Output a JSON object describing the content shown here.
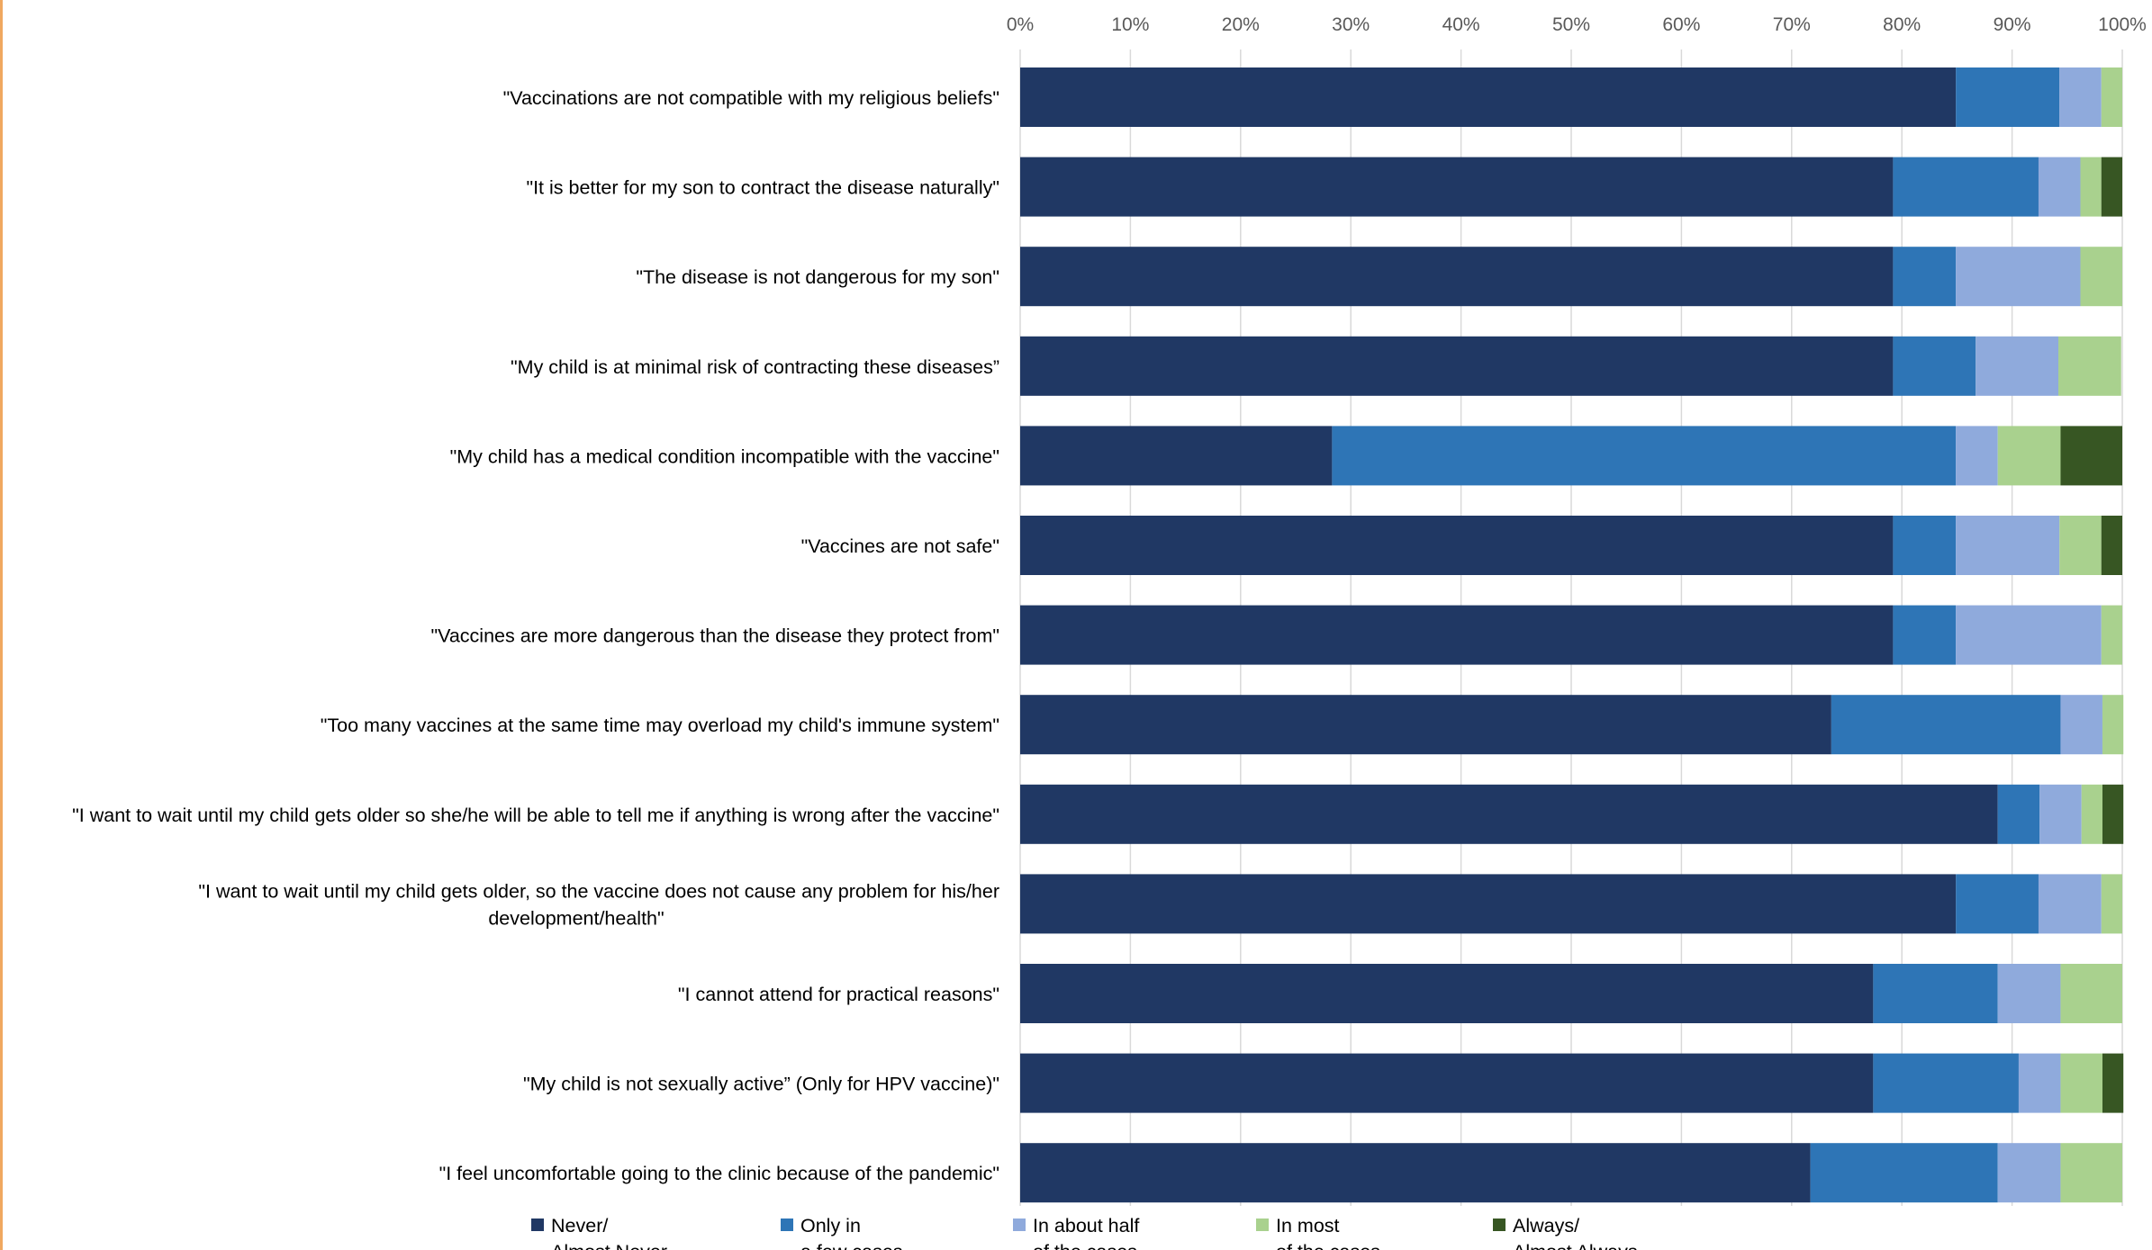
{
  "chart_data": {
    "type": "bar",
    "orientation": "horizontal",
    "stacked": "percent",
    "xlim": [
      0,
      100
    ],
    "x_ticks": [
      "0%",
      "10%",
      "20%",
      "30%",
      "40%",
      "50%",
      "60%",
      "70%",
      "80%",
      "90%",
      "100%"
    ],
    "grid": true,
    "legend_position": "bottom",
    "categories": [
      "\"Vaccinations are not compatible with my religious beliefs\"",
      "\"It is better for my son to contract the disease naturally\"",
      "\"The disease is not dangerous for my son\"",
      "\"My child is at minimal risk of contracting these diseases”",
      "\"My child has a medical condition incompatible with the vaccine\"",
      "\"Vaccines are not safe\"",
      "\"Vaccines are more dangerous than the disease they protect from\"",
      "\"Too many vaccines at the same time may overload my child's immune system\"",
      "\"I want to wait until my child gets older so she/he will be able to tell me if anything is wrong after the vaccine\"",
      "\"I want to wait until my child gets older, so the vaccine does not cause any problem for his/her development/health\"",
      "\"I cannot attend for practical reasons\"",
      "\"My child is not sexually active” (Only for HPV vaccine)\"",
      "\"I feel uncomfortable going to the clinic because of the pandemic\""
    ],
    "category_lines": [
      [
        "\"Vaccinations are not compatible with my religious beliefs\""
      ],
      [
        "\"It is better for my son to contract the disease naturally\""
      ],
      [
        "\"The disease is not dangerous for my son\""
      ],
      [
        "\"My child is at minimal risk of contracting these diseases”"
      ],
      [
        "\"My child has a medical condition incompatible with the vaccine\""
      ],
      [
        "\"Vaccines are not safe\""
      ],
      [
        "\"Vaccines are more dangerous than the disease they protect from\""
      ],
      [
        "\"Too many vaccines at the same time may overload my child's immune system\""
      ],
      [
        "\"I want to wait until my child gets older so she/he will be able to tell me if anything is wrong after the vaccine\""
      ],
      [
        "\"I want to wait until my child gets older, so the vaccine does not cause any problem for his/her",
        "development/health\""
      ],
      [
        "\"I cannot attend for practical reasons\""
      ],
      [
        "\"My child is not sexually active” (Only for HPV vaccine)\""
      ],
      [
        "\"I feel uncomfortable going to the clinic because of the pandemic\""
      ]
    ],
    "series": [
      {
        "name": "Never/ Almost Never",
        "legend_lines": [
          "Never/",
          "Almost Never"
        ],
        "color": "#203864",
        "values": [
          84.9,
          79.2,
          79.2,
          79.2,
          28.3,
          79.2,
          79.2,
          73.6,
          88.7,
          84.9,
          77.4,
          77.4,
          71.7
        ]
      },
      {
        "name": "Only in a few cases",
        "legend_lines": [
          "Only in",
          "a few cases"
        ],
        "color": "#2e75b6",
        "values": [
          9.4,
          13.2,
          5.7,
          7.5,
          56.6,
          5.7,
          5.7,
          20.8,
          3.8,
          7.5,
          11.3,
          13.2,
          17.0
        ]
      },
      {
        "name": "In about half of the cases",
        "legend_lines": [
          "In about half",
          "of the cases"
        ],
        "color": "#8faadc",
        "values": [
          3.8,
          3.8,
          11.3,
          7.5,
          3.8,
          9.4,
          13.2,
          3.8,
          3.8,
          5.7,
          5.7,
          3.8,
          5.7
        ]
      },
      {
        "name": "In most of the cases",
        "legend_lines": [
          "In most",
          "of the cases"
        ],
        "color": "#a9d18e",
        "values": [
          1.9,
          1.9,
          3.8,
          5.7,
          5.7,
          3.8,
          1.9,
          1.9,
          1.9,
          1.9,
          5.6,
          3.8,
          5.6
        ]
      },
      {
        "name": "Always/ Almost Always",
        "legend_lines": [
          "Always/",
          "Almost Always"
        ],
        "color": "#375623",
        "values": [
          0,
          1.9,
          0,
          0,
          5.6,
          1.9,
          0,
          0,
          1.9,
          0,
          0,
          1.9,
          0
        ]
      }
    ]
  }
}
